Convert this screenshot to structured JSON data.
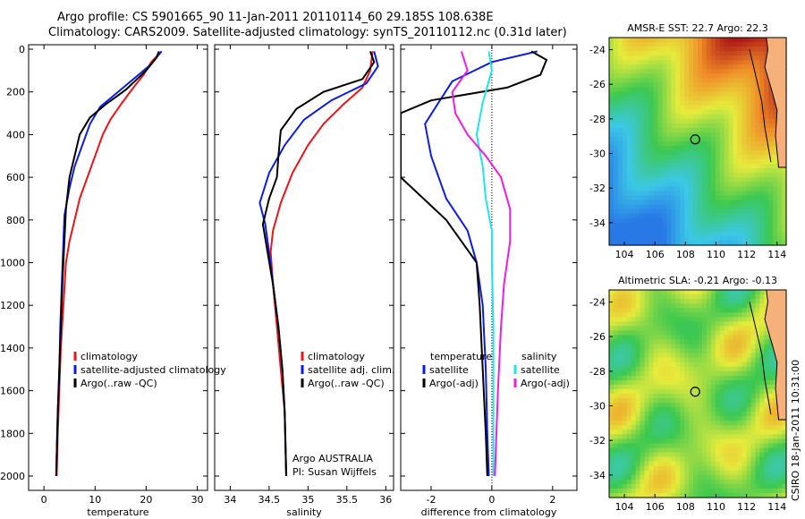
{
  "header": {
    "line1": "Argo profile: CS 5901665_90 11-Jan-2011 20110114_60 29.185S 108.638E",
    "line2": "Climatology: CARS2009. Satellite-adjusted climatology: synTS_20110112.nc (0.31d later)"
  },
  "side_text": "CSIRO 18-Jan-2011 10:31:00",
  "colors": {
    "climatology": "#e8151a",
    "satellite": "#0b1ee0",
    "argo": "#000000",
    "satellite_sal_diff": "#1ee5ee",
    "argo_sal_diff": "#ee1ee0"
  },
  "chart_data": [
    {
      "type": "line",
      "xlabel": "temperature",
      "ylim": [
        2050,
        0
      ],
      "xlim": [
        -3,
        32
      ],
      "yticks": [
        "0",
        "200",
        "400",
        "600",
        "800",
        "1000",
        "1200",
        "1400",
        "1600",
        "1800",
        "2000"
      ],
      "xticks": [
        "0",
        "10",
        "20",
        "30"
      ],
      "legend": [
        "climatology",
        "satellite-adjusted climatology",
        "Argo(..raw -QC)"
      ],
      "series": [
        {
          "name": "climatology",
          "points": [
            [
              23,
              10
            ],
            [
              21,
              60
            ],
            [
              19.5,
              120
            ],
            [
              17.5,
              180
            ],
            [
              15,
              260
            ],
            [
              13,
              330
            ],
            [
              11.5,
              400
            ],
            [
              10,
              500
            ],
            [
              8.5,
              600
            ],
            [
              7,
              700
            ],
            [
              6,
              800
            ],
            [
              5,
              900
            ],
            [
              4.3,
              1000
            ],
            [
              3.8,
              1200
            ],
            [
              3.3,
              1400
            ],
            [
              3,
              1600
            ],
            [
              2.7,
              1800
            ],
            [
              2.5,
              2000
            ]
          ]
        },
        {
          "name": "satellite-adjusted climatology",
          "points": [
            [
              23,
              10
            ],
            [
              21,
              70
            ],
            [
              18,
              130
            ],
            [
              14,
              210
            ],
            [
              11,
              270
            ],
            [
              9,
              350
            ],
            [
              7.5,
              450
            ],
            [
              6,
              550
            ],
            [
              5,
              650
            ],
            [
              4,
              780
            ],
            [
              3.8,
              900
            ],
            [
              3.5,
              1100
            ],
            [
              3.2,
              1300
            ],
            [
              3,
              1500
            ],
            [
              2.7,
              1700
            ],
            [
              2.5,
              1900
            ],
            [
              2.4,
              2000
            ]
          ]
        },
        {
          "name": "Argo(..raw -QC)",
          "points": [
            [
              22.5,
              10
            ],
            [
              22,
              40
            ],
            [
              20,
              100
            ],
            [
              16,
              190
            ],
            [
              12,
              260
            ],
            [
              9,
              320
            ],
            [
              7,
              400
            ],
            [
              6,
              500
            ],
            [
              5,
              600
            ],
            [
              4.3,
              750
            ],
            [
              4,
              900
            ],
            [
              3.6,
              1100
            ],
            [
              3.3,
              1300
            ],
            [
              3,
              1500
            ],
            [
              2.7,
              1700
            ],
            [
              2.5,
              1900
            ],
            [
              2.4,
              2000
            ]
          ]
        }
      ]
    },
    {
      "type": "line",
      "xlabel": "salinity",
      "ylim": [
        2050,
        0
      ],
      "xlim": [
        33.8,
        36.1
      ],
      "xticks": [
        "34",
        "34.5",
        "35",
        "35.5",
        "36"
      ],
      "legend": [
        "climatology",
        "satellite adj. clim.",
        "Argo(..raw -QC)"
      ],
      "annotation": [
        "Argo AUSTRALIA",
        "PI: Susan Wijffels"
      ],
      "series": [
        {
          "name": "climatology",
          "points": [
            [
              35.83,
              10
            ],
            [
              35.8,
              100
            ],
            [
              35.7,
              180
            ],
            [
              35.45,
              260
            ],
            [
              35.2,
              350
            ],
            [
              35,
              450
            ],
            [
              34.8,
              580
            ],
            [
              34.65,
              720
            ],
            [
              34.55,
              850
            ],
            [
              34.52,
              950
            ],
            [
              34.55,
              1100
            ],
            [
              34.6,
              1300
            ],
            [
              34.65,
              1500
            ],
            [
              34.7,
              1700
            ],
            [
              34.72,
              2000
            ]
          ]
        },
        {
          "name": "satellite adj. clim.",
          "points": [
            [
              35.85,
              10
            ],
            [
              35.9,
              80
            ],
            [
              35.75,
              160
            ],
            [
              35.3,
              240
            ],
            [
              34.95,
              330
            ],
            [
              34.7,
              450
            ],
            [
              34.5,
              580
            ],
            [
              34.38,
              720
            ],
            [
              34.45,
              820
            ],
            [
              34.5,
              950
            ],
            [
              34.55,
              1100
            ],
            [
              34.62,
              1300
            ],
            [
              34.67,
              1500
            ],
            [
              34.7,
              1700
            ],
            [
              34.72,
              2000
            ]
          ]
        },
        {
          "name": "Argo(..raw -QC)",
          "points": [
            [
              35.8,
              10
            ],
            [
              35.85,
              60
            ],
            [
              35.7,
              140
            ],
            [
              35.2,
              200
            ],
            [
              34.85,
              280
            ],
            [
              34.65,
              380
            ],
            [
              34.62,
              500
            ],
            [
              34.6,
              600
            ],
            [
              34.5,
              700
            ],
            [
              34.42,
              820
            ],
            [
              34.48,
              950
            ],
            [
              34.55,
              1100
            ],
            [
              34.62,
              1300
            ],
            [
              34.67,
              1500
            ],
            [
              34.7,
              1700
            ],
            [
              34.72,
              2000
            ]
          ]
        }
      ]
    },
    {
      "type": "line",
      "xlabel": "difference from climatology",
      "ylim": [
        2050,
        0
      ],
      "xlim": [
        -3,
        2.8
      ],
      "xticks": [
        "-2",
        "0",
        "2"
      ],
      "legend_temperature": {
        "title": "temperature",
        "items": [
          "satellite",
          "Argo(-adj)"
        ]
      },
      "legend_salinity": {
        "title": "salinity",
        "items": [
          "satellite",
          "Argo(-adj)"
        ]
      },
      "series": [
        {
          "name": "temperature satellite",
          "points": [
            [
              1.5,
              10
            ],
            [
              0,
              60
            ],
            [
              -1.3,
              150
            ],
            [
              -1.8,
              260
            ],
            [
              -2.2,
              350
            ],
            [
              -2,
              500
            ],
            [
              -1.5,
              700
            ],
            [
              -0.8,
              850
            ],
            [
              -0.5,
              1000
            ],
            [
              -0.3,
              1200
            ],
            [
              -0.2,
              1500
            ],
            [
              -0.15,
              1800
            ],
            [
              -0.1,
              2000
            ]
          ]
        },
        {
          "name": "temperature Argo(-adj)",
          "points": [
            [
              1.3,
              10
            ],
            [
              1.8,
              50
            ],
            [
              1.6,
              120
            ],
            [
              0.5,
              180
            ],
            [
              -2,
              240
            ],
            [
              -3,
              300
            ],
            [
              -3,
              600
            ],
            [
              -1.5,
              800
            ],
            [
              -0.5,
              1000
            ],
            [
              -0.4,
              1200
            ],
            [
              -0.3,
              1500
            ],
            [
              -0.2,
              1800
            ],
            [
              -0.15,
              2000
            ]
          ]
        },
        {
          "name": "salinity satellite",
          "points": [
            [
              -0.1,
              10
            ],
            [
              0,
              100
            ],
            [
              -0.3,
              250
            ],
            [
              -0.5,
              400
            ],
            [
              -0.3,
              550
            ],
            [
              -0.2,
              700
            ],
            [
              0,
              850
            ],
            [
              0,
              1000
            ],
            [
              0.05,
              1300
            ],
            [
              0.05,
              1600
            ],
            [
              0.05,
              2000
            ]
          ]
        },
        {
          "name": "salinity Argo(-adj)",
          "points": [
            [
              -1,
              10
            ],
            [
              -0.8,
              100
            ],
            [
              -1.3,
              200
            ],
            [
              -1.2,
              300
            ],
            [
              -0.8,
              400
            ],
            [
              -0.2,
              500
            ],
            [
              0.3,
              600
            ],
            [
              0.6,
              750
            ],
            [
              0.6,
              900
            ],
            [
              0.4,
              1100
            ],
            [
              0.3,
              1300
            ],
            [
              0.2,
              1600
            ],
            [
              0.1,
              2000
            ]
          ]
        }
      ]
    },
    {
      "type": "heatmap",
      "title": "AMSR-E SST: 22.7 Argo: 22.3",
      "xticks": [
        "104",
        "106",
        "108",
        "110",
        "112",
        "114"
      ],
      "yticks": [
        "-24",
        "-26",
        "-28",
        "-30",
        "-32",
        "-34"
      ],
      "marker": {
        "lon": 108.638,
        "lat": -29.185
      }
    },
    {
      "type": "heatmap",
      "title": "Altimetric SLA: -0.21 Argo: -0.13",
      "xticks": [
        "104",
        "106",
        "108",
        "110",
        "112",
        "114"
      ],
      "yticks": [
        "-24",
        "-26",
        "-28",
        "-30",
        "-32",
        "-34"
      ],
      "marker": {
        "lon": 108.638,
        "lat": -29.185
      }
    }
  ]
}
